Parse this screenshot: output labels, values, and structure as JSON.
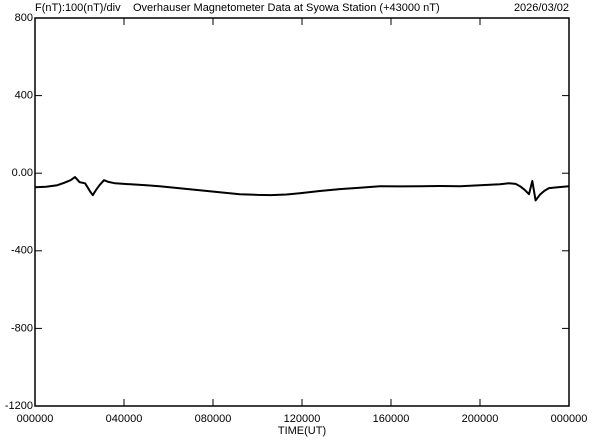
{
  "chart_data": {
    "type": "line",
    "title": "Overhauser Magnetometer Data at Syowa Station (+43000 nT)",
    "scale_label": "F(nT):100(nT)/div",
    "date": "2026/03/02",
    "x_label": "TIME(UT)",
    "x": [
      0,
      0.5,
      1.0,
      1.3,
      1.6,
      1.8,
      2.0,
      2.25,
      2.5,
      2.6,
      2.75,
      2.9,
      3.1,
      3.3,
      3.6,
      4.0,
      4.3,
      5.0,
      5.6,
      6.5,
      7.4,
      8.3,
      9.2,
      10.0,
      10.6,
      11.3,
      11.9,
      12.8,
      13.7,
      14.6,
      15.5,
      16.4,
      17.3,
      18.2,
      19.1,
      20.0,
      20.9,
      21.3,
      21.6,
      21.8,
      22.0,
      22.2,
      22.35,
      22.5,
      22.7,
      22.9,
      23.1,
      23.5,
      24.0
    ],
    "series": [
      {
        "name": "F",
        "color": "#000000",
        "values": [
          -72,
          -70,
          -62,
          -50,
          -36,
          -20,
          -46,
          -52,
          -98,
          -113,
          -85,
          -62,
          -36,
          -45,
          -52,
          -55,
          -57,
          -62,
          -67,
          -78,
          -88,
          -98,
          -108,
          -112,
          -113,
          -110,
          -103,
          -92,
          -82,
          -75,
          -67,
          -68,
          -67,
          -66,
          -67,
          -62,
          -57,
          -52,
          -55,
          -67,
          -85,
          -108,
          -40,
          -140,
          -110,
          -90,
          -77,
          -72,
          -67
        ]
      }
    ],
    "xlim": [
      0,
      24
    ],
    "xticks": [
      {
        "value": 0,
        "label": "000000"
      },
      {
        "value": 4,
        "label": "040000"
      },
      {
        "value": 8,
        "label": "080000"
      },
      {
        "value": 12,
        "label": "120000"
      },
      {
        "value": 16,
        "label": "160000"
      },
      {
        "value": 20,
        "label": "200000"
      },
      {
        "value": 24,
        "label": "000000"
      }
    ],
    "ylim": [
      -1200,
      800
    ],
    "yticks": [
      800,
      400,
      {
        "value": 0,
        "label": "0.00"
      },
      -400,
      -800,
      -1200
    ]
  }
}
